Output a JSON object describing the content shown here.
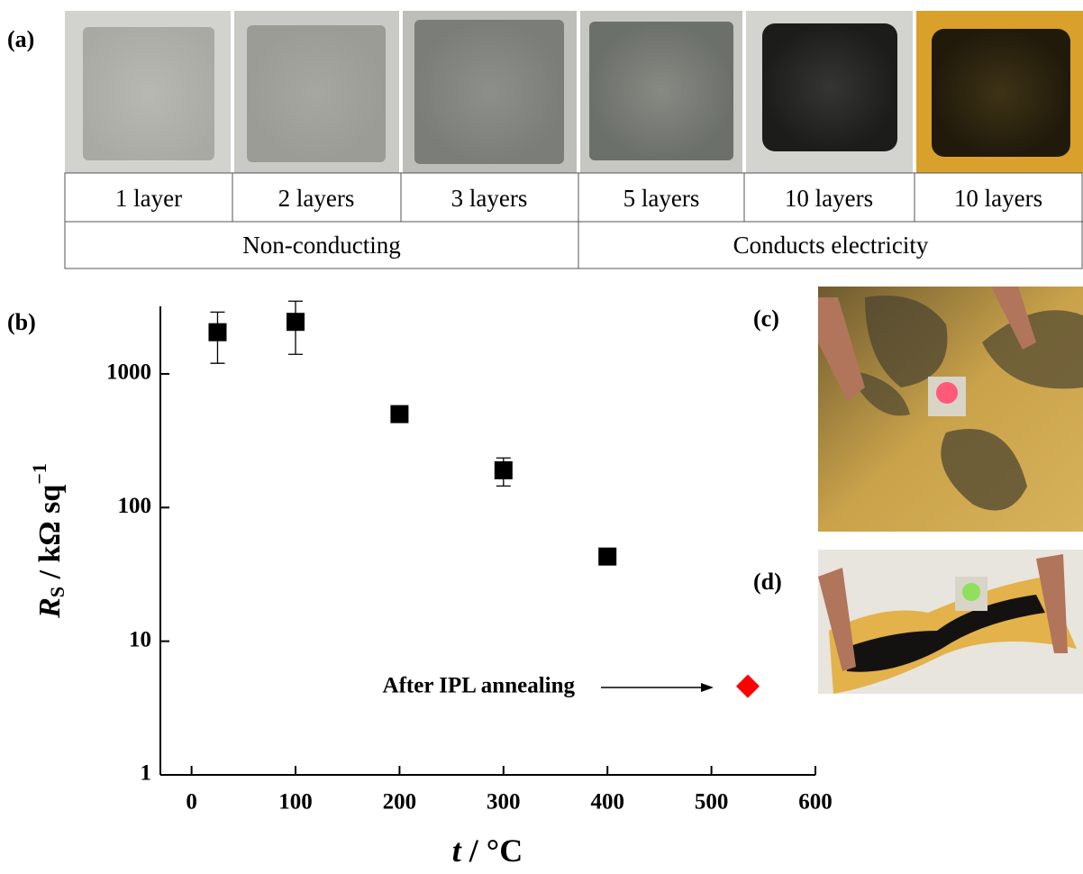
{
  "panel_labels": [
    "(a)",
    "(b)",
    "(c)",
    "(d)"
  ],
  "photo_table": {
    "layers": [
      "1 layer",
      "2 layers",
      "3 layers",
      "5 layers",
      "10 layers",
      "10 layers"
    ],
    "groups": [
      "Non-conducting",
      "Conducts electricity"
    ]
  },
  "chart_data": {
    "type": "scatter",
    "ylabel": [
      "R",
      "S",
      " / kΩ sq",
      "−1"
    ],
    "xlabel": [
      "t",
      " / °C"
    ],
    "annotation": "After IPL annealing",
    "log_y": true,
    "xlim": [
      -30,
      600
    ],
    "xticks": [
      0,
      100,
      200,
      300,
      400,
      500,
      600
    ],
    "ylim": [
      1,
      3200
    ],
    "yticks": [
      1,
      10,
      100,
      1000
    ],
    "series": [
      {
        "x": [
          25,
          100,
          200,
          300,
          400
        ],
        "values": [
          2050,
          2450,
          500,
          190,
          43
        ],
        "errors": [
          850,
          1050,
          null,
          45,
          null
        ],
        "color": "#000000",
        "marker": "square"
      },
      {
        "x": [
          535
        ],
        "values": [
          4.6
        ],
        "color": "#ff0000",
        "marker": "diamond"
      }
    ]
  }
}
